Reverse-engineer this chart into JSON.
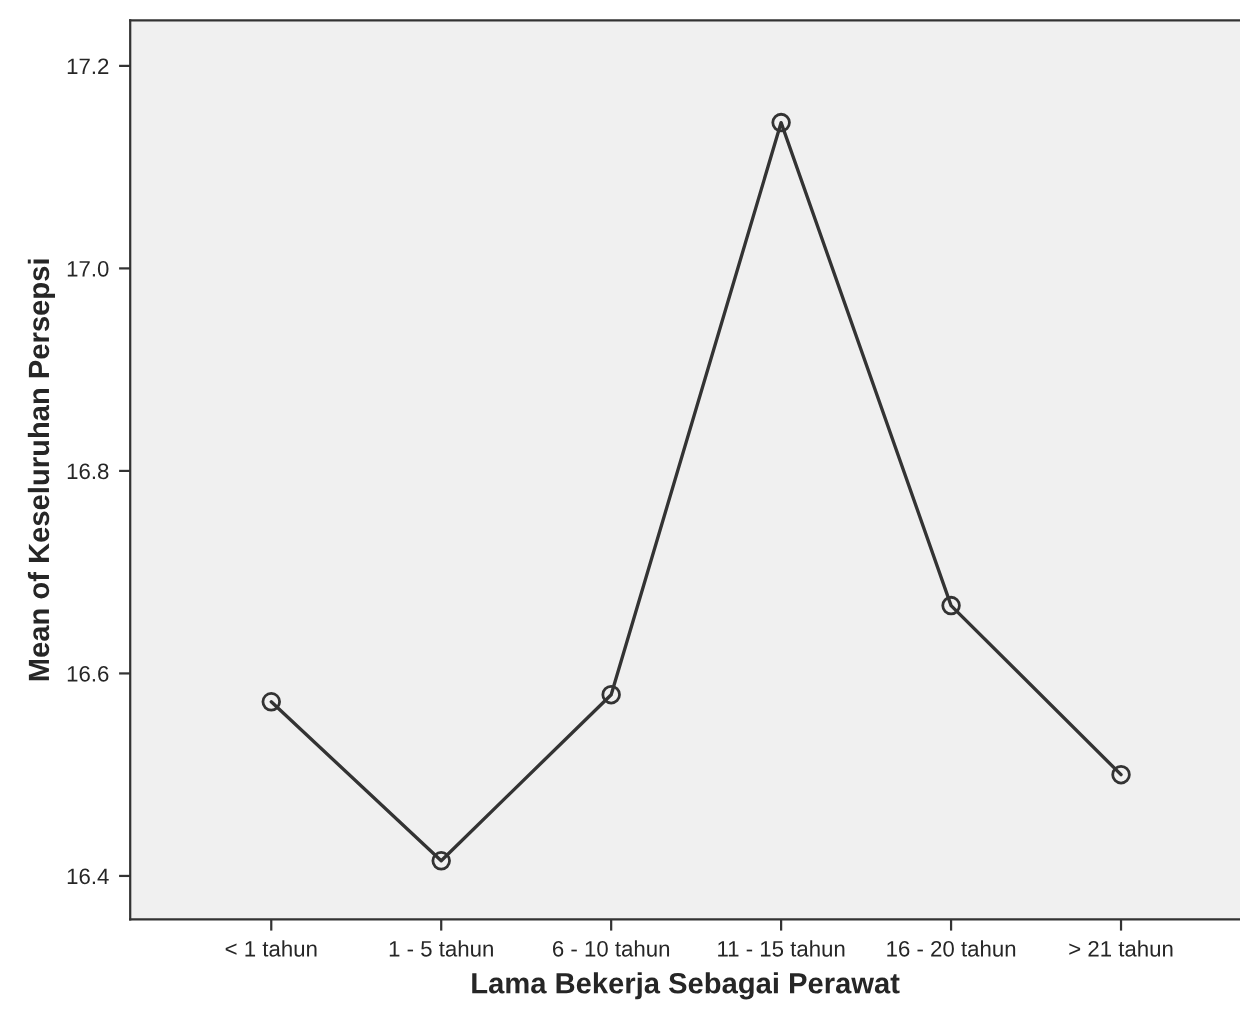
{
  "chart_data": {
    "type": "line",
    "xlabel": "Lama Bekerja Sebagai Perawat",
    "ylabel": "Mean of Keseluruhan Persepsi",
    "categories": [
      "< 1 tahun",
      "1 - 5 tahun",
      "6 - 10 tahun",
      "11 - 15 tahun",
      "16 - 20 tahun",
      "> 21 tahun"
    ],
    "series": [
      {
        "color": "#333333",
        "values": [
          16.572,
          16.415,
          16.579,
          17.144,
          16.667,
          16.5
        ]
      }
    ],
    "ylim": [
      16.357,
      17.245
    ],
    "yticks": [
      {
        "value": 16.4,
        "label": "16.4"
      },
      {
        "value": 16.6,
        "label": "16.6"
      },
      {
        "value": 16.8,
        "label": "16.8"
      },
      {
        "value": 17.0,
        "label": "17.0"
      },
      {
        "value": 17.2,
        "label": "17.2"
      }
    ],
    "grid": false,
    "marker": "circle",
    "line_style": "solid",
    "legend": false
  }
}
